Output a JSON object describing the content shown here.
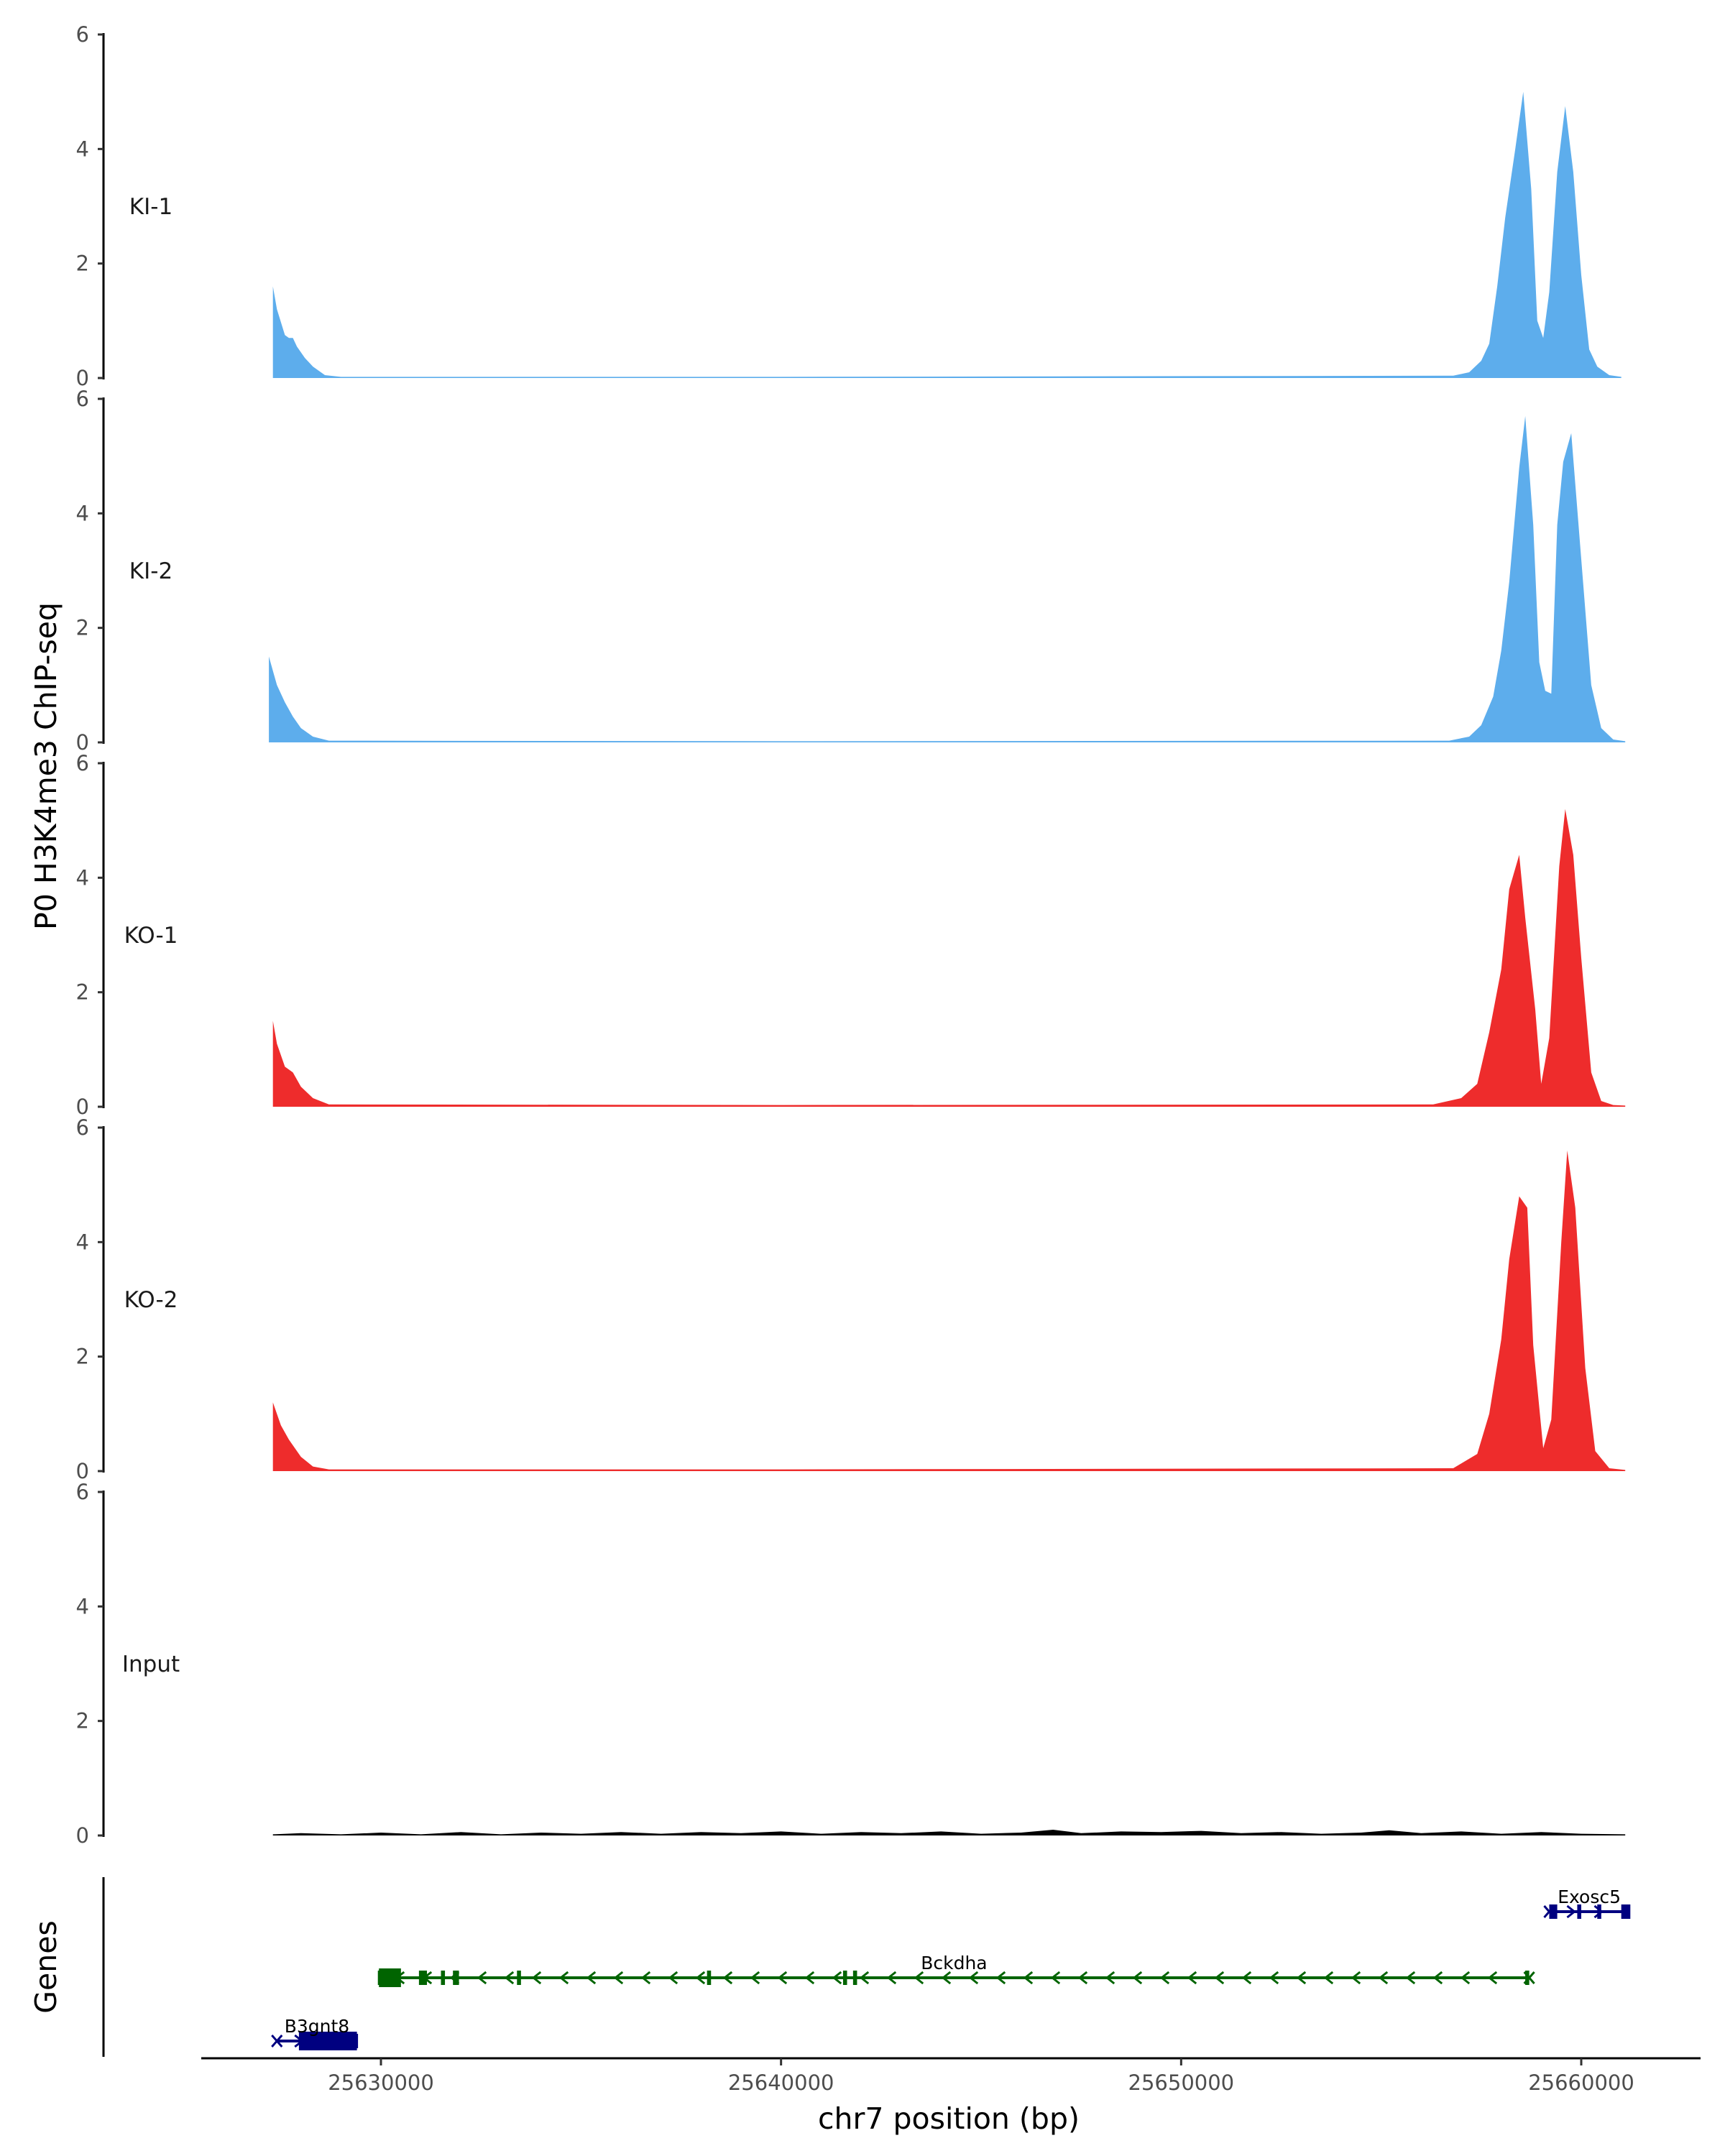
{
  "chart_data": {
    "type": "area",
    "ylabel": "P0 H3K4me3 ChIP-seq",
    "xlabel": "chr7 position (bp)",
    "x_range": [
      25626000,
      25663000
    ],
    "x_ticks": [
      {
        "value": 25630000,
        "label": "25630000"
      },
      {
        "value": 25640000,
        "label": "25640000"
      },
      {
        "value": 25650000,
        "label": "25650000"
      },
      {
        "value": 25660000,
        "label": "25660000"
      }
    ],
    "ylim": [
      0,
      6
    ],
    "y_ticks": [
      {
        "value": 0,
        "label": "0"
      },
      {
        "value": 2,
        "label": "2"
      },
      {
        "value": 4,
        "label": "4"
      },
      {
        "value": 6,
        "label": "6"
      }
    ],
    "series": [
      {
        "name": "KI-1",
        "color": "#5DADEC",
        "x_start": 25627300,
        "x_end": 25661000,
        "points": [
          [
            25627300,
            1.6
          ],
          [
            25627400,
            1.2
          ],
          [
            25627600,
            0.75
          ],
          [
            25627700,
            0.7
          ],
          [
            25627800,
            0.7
          ],
          [
            25627900,
            0.55
          ],
          [
            25628100,
            0.35
          ],
          [
            25628300,
            0.2
          ],
          [
            25628600,
            0.05
          ],
          [
            25629000,
            0.02
          ],
          [
            25640000,
            0.02
          ],
          [
            25656800,
            0.04
          ],
          [
            25657200,
            0.1
          ],
          [
            25657500,
            0.3
          ],
          [
            25657700,
            0.6
          ],
          [
            25657900,
            1.6
          ],
          [
            25658100,
            2.8
          ],
          [
            25658350,
            4.0
          ],
          [
            25658550,
            5.0
          ],
          [
            25658750,
            3.3
          ],
          [
            25658900,
            1.0
          ],
          [
            25659050,
            0.7
          ],
          [
            25659200,
            1.5
          ],
          [
            25659400,
            3.6
          ],
          [
            25659600,
            4.75
          ],
          [
            25659800,
            3.6
          ],
          [
            25660000,
            1.8
          ],
          [
            25660200,
            0.5
          ],
          [
            25660400,
            0.2
          ],
          [
            25660700,
            0.05
          ],
          [
            25661000,
            0.02
          ]
        ]
      },
      {
        "name": "KI-2",
        "color": "#5DADEC",
        "x_start": 25627200,
        "x_end": 25661100,
        "points": [
          [
            25627200,
            1.5
          ],
          [
            25627400,
            1.0
          ],
          [
            25627600,
            0.7
          ],
          [
            25627800,
            0.45
          ],
          [
            25628000,
            0.25
          ],
          [
            25628300,
            0.1
          ],
          [
            25628700,
            0.03
          ],
          [
            25640000,
            0.02
          ],
          [
            25656700,
            0.03
          ],
          [
            25657200,
            0.1
          ],
          [
            25657500,
            0.3
          ],
          [
            25657800,
            0.8
          ],
          [
            25658000,
            1.6
          ],
          [
            25658200,
            2.8
          ],
          [
            25658450,
            4.8
          ],
          [
            25658600,
            5.7
          ],
          [
            25658800,
            3.8
          ],
          [
            25658950,
            1.4
          ],
          [
            25659100,
            0.9
          ],
          [
            25659250,
            0.85
          ],
          [
            25659400,
            3.8
          ],
          [
            25659550,
            4.9
          ],
          [
            25659750,
            5.4
          ],
          [
            25660000,
            3.2
          ],
          [
            25660250,
            1.0
          ],
          [
            25660500,
            0.25
          ],
          [
            25660800,
            0.05
          ],
          [
            25661100,
            0.02
          ]
        ]
      },
      {
        "name": "KO-1",
        "color": "#EE2C2C",
        "x_start": 25627300,
        "x_end": 25661100,
        "points": [
          [
            25627300,
            1.5
          ],
          [
            25627400,
            1.1
          ],
          [
            25627600,
            0.7
          ],
          [
            25627800,
            0.6
          ],
          [
            25628000,
            0.35
          ],
          [
            25628300,
            0.15
          ],
          [
            25628700,
            0.04
          ],
          [
            25640000,
            0.03
          ],
          [
            25656300,
            0.04
          ],
          [
            25657000,
            0.15
          ],
          [
            25657400,
            0.4
          ],
          [
            25657700,
            1.3
          ],
          [
            25658000,
            2.4
          ],
          [
            25658200,
            3.8
          ],
          [
            25658450,
            4.4
          ],
          [
            25658600,
            3.3
          ],
          [
            25658850,
            1.7
          ],
          [
            25659000,
            0.4
          ],
          [
            25659200,
            1.2
          ],
          [
            25659450,
            4.2
          ],
          [
            25659600,
            5.2
          ],
          [
            25659800,
            4.4
          ],
          [
            25660000,
            2.6
          ],
          [
            25660250,
            0.6
          ],
          [
            25660500,
            0.1
          ],
          [
            25660800,
            0.03
          ],
          [
            25661100,
            0.02
          ]
        ]
      },
      {
        "name": "KO-2",
        "color": "#EE2C2C",
        "x_start": 25627300,
        "x_end": 25661100,
        "points": [
          [
            25627300,
            1.2
          ],
          [
            25627500,
            0.8
          ],
          [
            25627700,
            0.55
          ],
          [
            25628000,
            0.25
          ],
          [
            25628300,
            0.08
          ],
          [
            25628700,
            0.03
          ],
          [
            25640000,
            0.03
          ],
          [
            25656800,
            0.05
          ],
          [
            25657400,
            0.3
          ],
          [
            25657700,
            1.0
          ],
          [
            25658000,
            2.3
          ],
          [
            25658200,
            3.7
          ],
          [
            25658450,
            4.8
          ],
          [
            25658650,
            4.6
          ],
          [
            25658800,
            2.2
          ],
          [
            25659050,
            0.4
          ],
          [
            25659250,
            0.9
          ],
          [
            25659500,
            4.0
          ],
          [
            25659650,
            5.6
          ],
          [
            25659850,
            4.6
          ],
          [
            25660100,
            1.8
          ],
          [
            25660350,
            0.35
          ],
          [
            25660700,
            0.05
          ],
          [
            25661100,
            0.02
          ]
        ]
      },
      {
        "name": "Input",
        "color": "#000000",
        "x_start": 25627300,
        "x_end": 25661100,
        "points": [
          [
            25627300,
            0.02
          ],
          [
            25628000,
            0.04
          ],
          [
            25629000,
            0.02
          ],
          [
            25630000,
            0.05
          ],
          [
            25631000,
            0.02
          ],
          [
            25632000,
            0.06
          ],
          [
            25633000,
            0.02
          ],
          [
            25634000,
            0.05
          ],
          [
            25635000,
            0.03
          ],
          [
            25636000,
            0.06
          ],
          [
            25637000,
            0.03
          ],
          [
            25638000,
            0.06
          ],
          [
            25639000,
            0.04
          ],
          [
            25640000,
            0.07
          ],
          [
            25641000,
            0.03
          ],
          [
            25642000,
            0.06
          ],
          [
            25643000,
            0.04
          ],
          [
            25644000,
            0.07
          ],
          [
            25645000,
            0.03
          ],
          [
            25646000,
            0.05
          ],
          [
            25646800,
            0.1
          ],
          [
            25647500,
            0.04
          ],
          [
            25648500,
            0.07
          ],
          [
            25649500,
            0.06
          ],
          [
            25650500,
            0.08
          ],
          [
            25651500,
            0.04
          ],
          [
            25652500,
            0.06
          ],
          [
            25653500,
            0.03
          ],
          [
            25654500,
            0.05
          ],
          [
            25655200,
            0.09
          ],
          [
            25656000,
            0.04
          ],
          [
            25657000,
            0.07
          ],
          [
            25658000,
            0.03
          ],
          [
            25659000,
            0.06
          ],
          [
            25660000,
            0.03
          ],
          [
            25661100,
            0.02
          ]
        ]
      }
    ],
    "genes_track": {
      "title": "Genes",
      "genes": [
        {
          "name": "Exosc5",
          "color": "#000080",
          "strand": "+",
          "start": 25659200,
          "end": 25661200,
          "exons": [
            [
              25659200,
              25659400
            ],
            [
              25659900,
              25660000
            ],
            [
              25660400,
              25660500
            ],
            [
              25661000,
              25661200
            ]
          ],
          "row": 0
        },
        {
          "name": "Bckdha",
          "color": "#006400",
          "strand": "-",
          "start": 25629950,
          "end": 25658700,
          "exons": [
            [
              25629950,
              25630500
            ],
            [
              25630950,
              25631150
            ],
            [
              25631500,
              25631600
            ],
            [
              25631800,
              25631950
            ],
            [
              25633400,
              25633500
            ],
            [
              25638150,
              25638250
            ],
            [
              25641550,
              25641650
            ],
            [
              25641800,
              25641900
            ],
            [
              25658600,
              25658700
            ]
          ],
          "row": 1
        },
        {
          "name": "B3gnt8",
          "color": "#000080",
          "strand": "+",
          "start": 25627400,
          "end": 25629400,
          "exons": [
            [
              25627950,
              25629400
            ]
          ],
          "row": 2
        }
      ]
    }
  }
}
